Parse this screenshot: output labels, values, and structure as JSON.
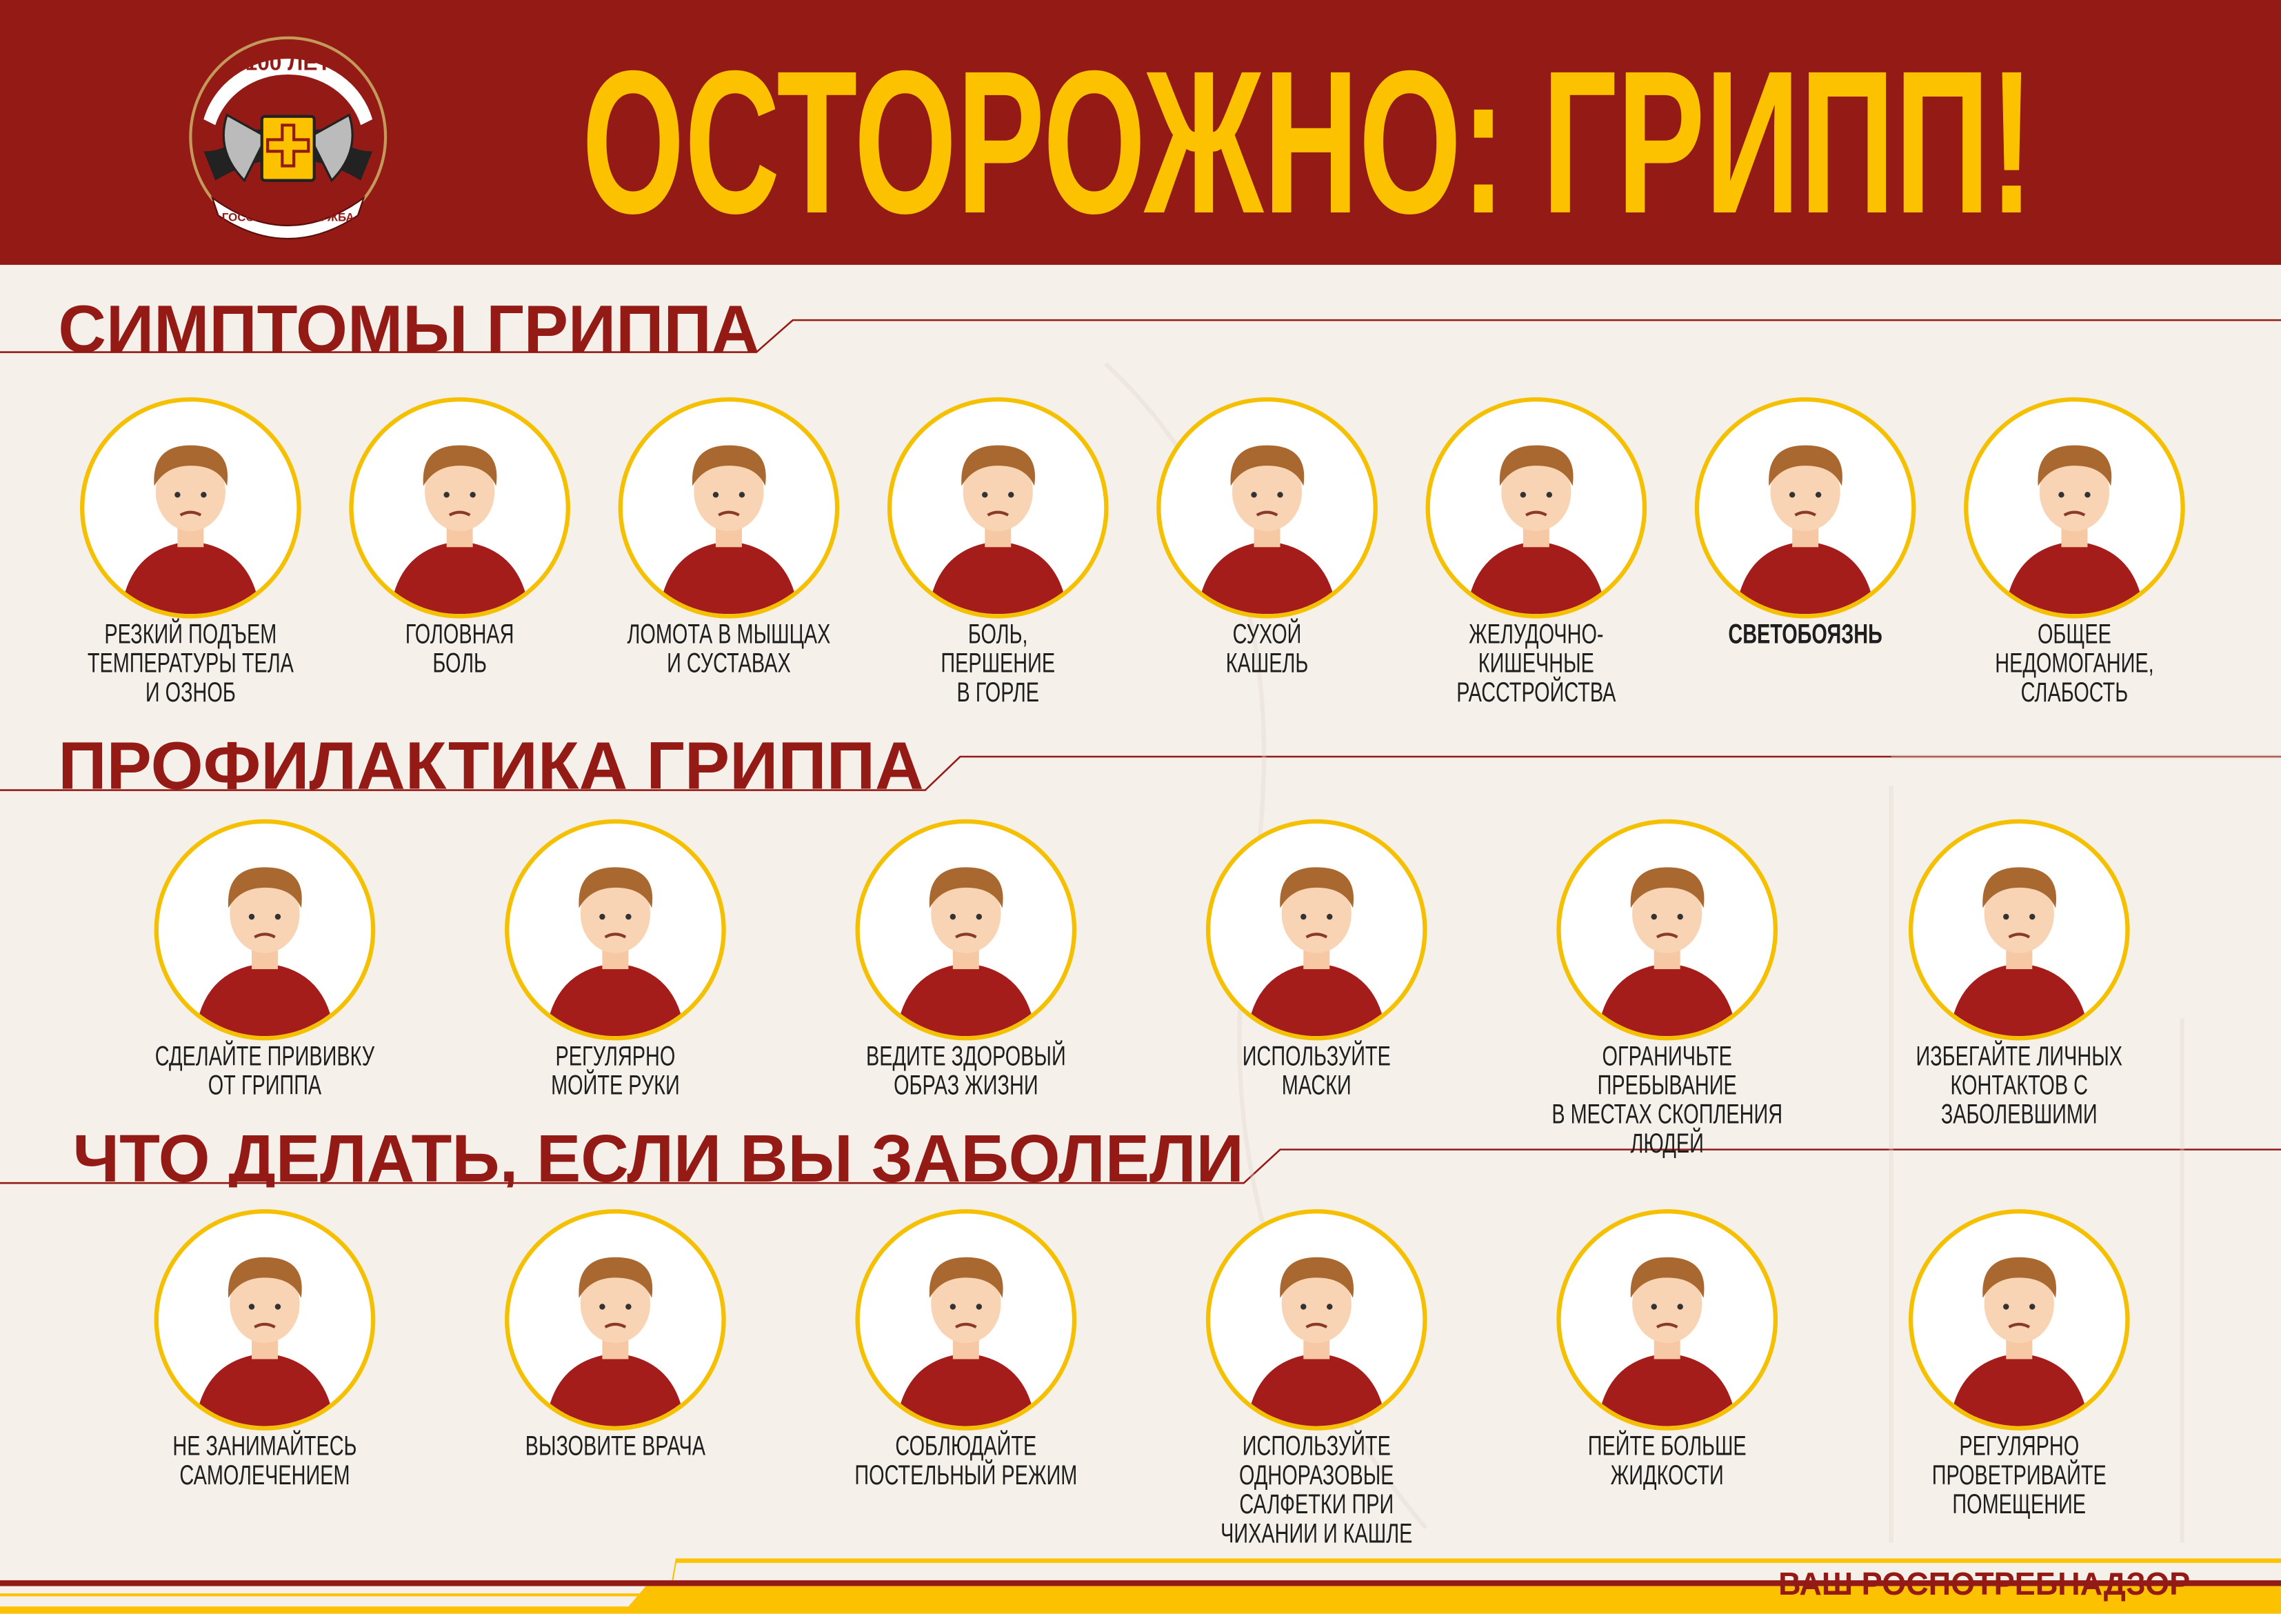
{
  "header": {
    "title": "ОСТОРОЖНО: ГРИПП!",
    "logo": {
      "top_text": "100 ЛЕТ",
      "bottom_text": "ГОССАНЭПИДСЛУЖБА"
    }
  },
  "colors": {
    "brand_red": "#941a16",
    "accent_yellow": "#fcc200",
    "background": "#f6f0ea"
  },
  "sections": [
    {
      "title": "СИМПТОМЫ ГРИППА",
      "items": [
        {
          "label": "РЕЗКИЙ ПОДЪЕМ\nТЕМПЕРАТУРЫ ТЕЛА\nИ ОЗНОБ",
          "icon": "fever-icon"
        },
        {
          "label": "ГОЛОВНАЯ\nБОЛЬ",
          "icon": "headache-icon"
        },
        {
          "label": "ЛОМОТА В МЫШЦАХ\nИ СУСТАВАХ",
          "icon": "muscle-ache-icon"
        },
        {
          "label": "БОЛЬ,\nПЕРШЕНИЕ\nВ ГОРЛЕ",
          "icon": "sore-throat-icon"
        },
        {
          "label": "СУХОЙ\nКАШЕЛЬ",
          "icon": "cough-icon"
        },
        {
          "label": "ЖЕЛУДОЧНО-\nКИШЕЧНЫЕ\nРАССТРОЙСТВА",
          "icon": "stomach-icon"
        },
        {
          "label": "СВЕТОБОЯЗНЬ",
          "icon": "photophobia-icon",
          "bold": true
        },
        {
          "label": "ОБЩЕЕ\nНЕДОМОГАНИЕ,\nСЛАБОСТЬ",
          "icon": "weakness-icon"
        }
      ]
    },
    {
      "title": "ПРОФИЛАКТИКА ГРИППА",
      "items": [
        {
          "label": "СДЕЛАЙТЕ ПРИВИВКУ\nОТ ГРИППА",
          "icon": "vaccine-icon"
        },
        {
          "label": "РЕГУЛЯРНО\nМОЙТЕ РУКИ",
          "icon": "hand-wash-icon"
        },
        {
          "label": "ВЕДИТЕ ЗДОРОВЫЙ\nОБРАЗ ЖИЗНИ",
          "icon": "healthy-lifestyle-icon"
        },
        {
          "label": "ИСПОЛЬЗУЙТЕ\nМАСКИ",
          "icon": "mask-icon"
        },
        {
          "label": "ОГРАНИЧЬТЕ ПРЕБЫВАНИЕ\nВ МЕСТАХ СКОПЛЕНИЯ ЛЮДЕЙ",
          "icon": "no-crowds-icon"
        },
        {
          "label": "ИЗБЕГАЙТЕ ЛИЧНЫХ\nКОНТАКТОВ С ЗАБОЛЕВШИМИ",
          "icon": "phone-contact-icon"
        }
      ]
    },
    {
      "title": "ЧТО ДЕЛАТЬ, ЕСЛИ ВЫ ЗАБОЛЕЛИ",
      "items": [
        {
          "label": "НЕ ЗАНИМАЙТЕСЬ\nСАМОЛЕЧЕНИЕМ",
          "icon": "pills-hand-icon"
        },
        {
          "label": "ВЫЗОВИТЕ ВРАЧА",
          "icon": "doctor-icon"
        },
        {
          "label": "СОБЛЮДАЙТЕ\nПОСТЕЛЬНЫЙ РЕЖИМ",
          "icon": "bed-rest-icon"
        },
        {
          "label": "ИСПОЛЬЗУЙТЕ ОДНОРАЗОВЫЕ\nСАЛФЕТКИ ПРИ\nЧИХАНИИ И КАШЛЕ",
          "icon": "tissue-icon"
        },
        {
          "label": "ПЕЙТЕ БОЛЬШЕ\nЖИДКОСТИ",
          "icon": "hot-drink-icon"
        },
        {
          "label": "РЕГУЛЯРНО\nПРОВЕТРИВАЙТЕ ПОМЕЩЕНИЕ",
          "icon": "open-window-icon"
        }
      ]
    }
  ],
  "footer": {
    "text": "ВАШ РОСПОТРЕБНАДЗОР"
  }
}
